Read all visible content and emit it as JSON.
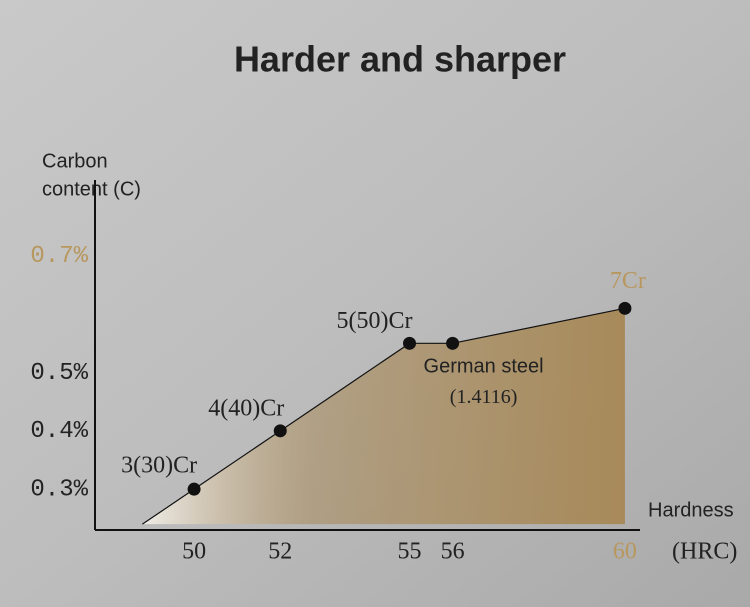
{
  "chart_data": {
    "type": "area",
    "title": "Harder and sharper",
    "y_label": [
      "Carbon",
      "content (C)"
    ],
    "x_label": "Hardness",
    "x_unit": "(HRC)",
    "x": [
      48.8,
      50,
      52,
      55,
      56,
      60
    ],
    "values": [
      0.24,
      0.3,
      0.4,
      0.55,
      0.55,
      0.61
    ],
    "point_labels": [
      null,
      [
        "3(30)Cr"
      ],
      [
        "4(40)Cr"
      ],
      [
        "5(50)Cr"
      ],
      [
        "German steel",
        "(1.4116)"
      ],
      [
        "7Cr"
      ]
    ],
    "xlim": [
      47.7,
      60.35
    ],
    "ylim": [
      0.23,
      0.83
    ],
    "xticks": [
      50,
      52,
      55,
      56,
      60
    ],
    "yticks": [
      {
        "value": 0.3,
        "label": "0.3%"
      },
      {
        "value": 0.4,
        "label": "0.4%"
      },
      {
        "value": 0.5,
        "label": "0.5%"
      },
      {
        "value": 0.7,
        "label": "0.7%"
      }
    ],
    "color": "#111111",
    "fill_color": "#a88a5a",
    "highlight": {
      "color": "#b8975f",
      "xticks": [
        4
      ],
      "yticks": [
        3
      ],
      "labels": [
        5
      ]
    }
  }
}
